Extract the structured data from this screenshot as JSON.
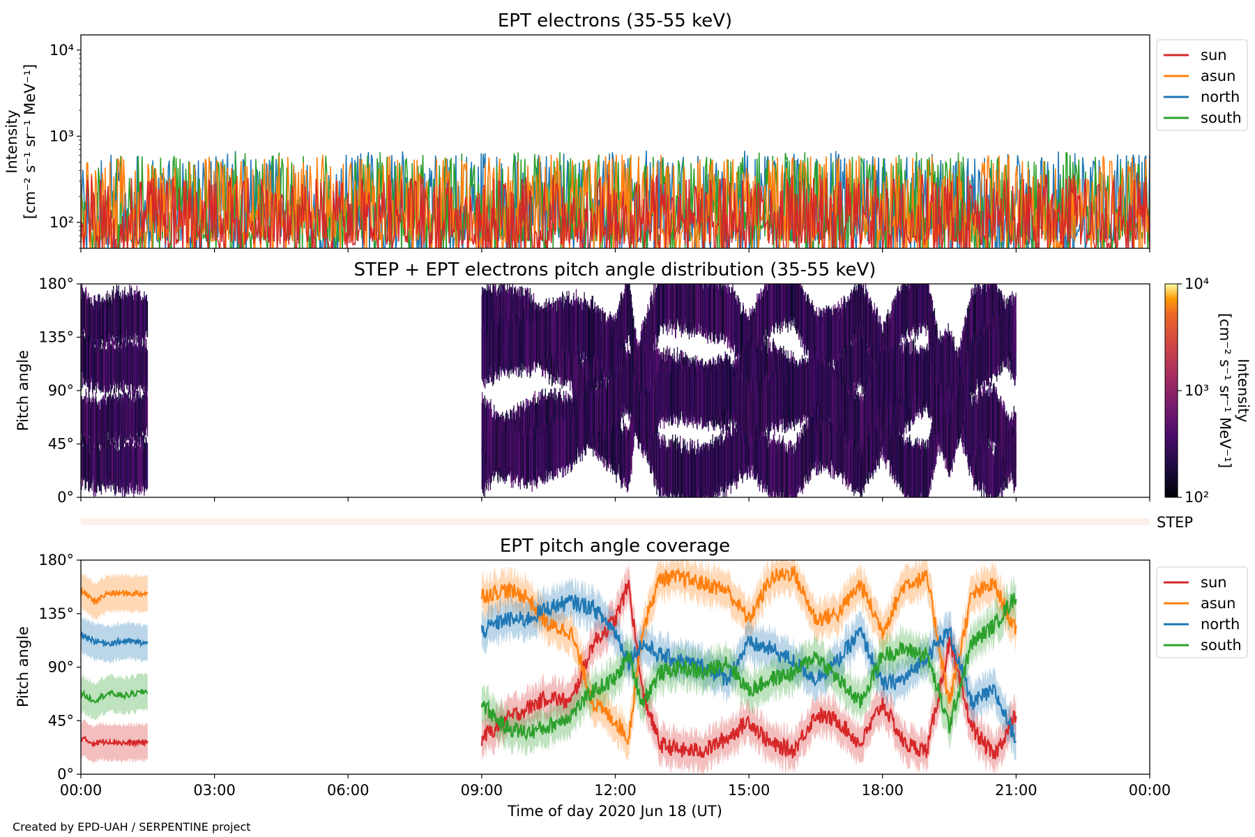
{
  "chart_data": [
    {
      "type": "line",
      "title": "EPT electrons (35-55 keV)",
      "ylabel_line1": "Intensity",
      "ylabel_line2": "[cm⁻² s⁻¹ sr⁻¹ MeV⁻¹]",
      "yscale": "log",
      "ylim": [
        50,
        15000
      ],
      "yticks": [
        {
          "value": 100,
          "label": "10²"
        },
        {
          "value": 1000,
          "label": "10³"
        },
        {
          "value": 10000,
          "label": "10⁴"
        }
      ],
      "xlim_hours": [
        0,
        24
      ],
      "x_unit": "hours since 2020-06-18 00:00 UT",
      "legend_position": "upper right outside",
      "series": [
        {
          "name": "sun",
          "color": "#d62728",
          "typical_range": [
            55,
            330
          ]
        },
        {
          "name": "asun",
          "color": "#ff7f0e",
          "typical_range": [
            60,
            560
          ]
        },
        {
          "name": "north",
          "color": "#1f77b4",
          "typical_range": [
            60,
            620
          ]
        },
        {
          "name": "south",
          "color": "#2ca02c",
          "typical_range": [
            60,
            600
          ]
        }
      ]
    },
    {
      "type": "heatmap",
      "title": "STEP + EPT electrons pitch angle distribution (35-55 keV)",
      "ylabel": "Pitch angle",
      "ylim": [
        0,
        180
      ],
      "yticks": [
        {
          "value": 0,
          "label": "0°"
        },
        {
          "value": 45,
          "label": "45°"
        },
        {
          "value": 90,
          "label": "90°"
        },
        {
          "value": 135,
          "label": "135°"
        },
        {
          "value": 180,
          "label": "180°"
        }
      ],
      "xlim_hours": [
        0,
        24
      ],
      "data_intervals_hours": [
        [
          0,
          1.5
        ],
        [
          9,
          21
        ]
      ],
      "colorbar": {
        "label": "Intensity",
        "unit": "[cm⁻² s⁻¹ sr⁻¹ MeV⁻¹]",
        "scale": "log",
        "range": [
          100,
          10000
        ],
        "ticks": [
          {
            "value": 100,
            "label": "10²"
          },
          {
            "value": 1000,
            "label": "10³"
          },
          {
            "value": 10000,
            "label": "10⁴"
          }
        ],
        "colormap": "inferno"
      }
    },
    {
      "type": "band",
      "label": "STEP",
      "color": "#fdf0ea",
      "xlim_hours": [
        0,
        24
      ]
    },
    {
      "type": "area",
      "title": "EPT pitch angle coverage",
      "ylabel": "Pitch angle",
      "ylim": [
        0,
        180
      ],
      "yticks": [
        {
          "value": 0,
          "label": "0°"
        },
        {
          "value": 45,
          "label": "45°"
        },
        {
          "value": 90,
          "label": "90°"
        },
        {
          "value": 135,
          "label": "135°"
        },
        {
          "value": 180,
          "label": "180°"
        }
      ],
      "xlabel": "Time of day 2020 Jun 18 (UT)",
      "xlim_hours": [
        0,
        24
      ],
      "xticks": [
        {
          "value": 0,
          "label": "00:00"
        },
        {
          "value": 3,
          "label": "03:00"
        },
        {
          "value": 6,
          "label": "06:00"
        },
        {
          "value": 9,
          "label": "09:00"
        },
        {
          "value": 12,
          "label": "12:00"
        },
        {
          "value": 15,
          "label": "15:00"
        },
        {
          "value": 18,
          "label": "18:00"
        },
        {
          "value": 21,
          "label": "21:00"
        },
        {
          "value": 24,
          "label": "00:00"
        }
      ],
      "legend_position": "upper right outside",
      "band_halfwidth_deg": 15,
      "series": [
        {
          "name": "sun",
          "color": "#d62728",
          "points": [
            [
              0,
              30
            ],
            [
              0.3,
              26
            ],
            [
              0.6,
              28
            ],
            [
              1.0,
              26
            ],
            [
              1.5,
              27
            ],
            [
              9.0,
              30
            ],
            [
              9.5,
              45
            ],
            [
              10.0,
              55
            ],
            [
              10.5,
              65
            ],
            [
              11.0,
              60
            ],
            [
              11.5,
              110
            ],
            [
              12.0,
              130
            ],
            [
              12.3,
              160
            ],
            [
              12.6,
              70
            ],
            [
              13.0,
              25
            ],
            [
              13.5,
              20
            ],
            [
              14.0,
              20
            ],
            [
              14.5,
              30
            ],
            [
              15.0,
              45
            ],
            [
              15.5,
              25
            ],
            [
              16.0,
              20
            ],
            [
              16.5,
              50
            ],
            [
              17.0,
              45
            ],
            [
              17.5,
              25
            ],
            [
              18.0,
              60
            ],
            [
              18.5,
              25
            ],
            [
              19.0,
              20
            ],
            [
              19.5,
              110
            ],
            [
              20.0,
              40
            ],
            [
              20.5,
              15
            ],
            [
              21.0,
              50
            ]
          ]
        },
        {
          "name": "asun",
          "color": "#ff7f0e",
          "points": [
            [
              0,
              155
            ],
            [
              0.3,
              145
            ],
            [
              0.6,
              152
            ],
            [
              1.0,
              152
            ],
            [
              1.5,
              152
            ],
            [
              9.0,
              150
            ],
            [
              9.5,
              155
            ],
            [
              10.0,
              150
            ],
            [
              10.5,
              125
            ],
            [
              11.0,
              120
            ],
            [
              11.5,
              60
            ],
            [
              12.0,
              45
            ],
            [
              12.3,
              30
            ],
            [
              12.6,
              120
            ],
            [
              13.0,
              165
            ],
            [
              13.5,
              165
            ],
            [
              14.0,
              160
            ],
            [
              14.5,
              155
            ],
            [
              15.0,
              130
            ],
            [
              15.5,
              165
            ],
            [
              16.0,
              170
            ],
            [
              16.5,
              130
            ],
            [
              17.0,
              135
            ],
            [
              17.5,
              160
            ],
            [
              18.0,
              120
            ],
            [
              18.5,
              160
            ],
            [
              19.0,
              165
            ],
            [
              19.5,
              60
            ],
            [
              20.0,
              150
            ],
            [
              20.5,
              160
            ],
            [
              21.0,
              120
            ]
          ]
        },
        {
          "name": "north",
          "color": "#1f77b4",
          "points": [
            [
              0,
              118
            ],
            [
              0.3,
              112
            ],
            [
              0.6,
              110
            ],
            [
              1.0,
              112
            ],
            [
              1.5,
              110
            ],
            [
              9.0,
              120
            ],
            [
              9.5,
              130
            ],
            [
              10.0,
              130
            ],
            [
              10.5,
              140
            ],
            [
              11.0,
              145
            ],
            [
              11.5,
              140
            ],
            [
              12.0,
              120
            ],
            [
              12.3,
              95
            ],
            [
              12.6,
              110
            ],
            [
              13.0,
              100
            ],
            [
              13.5,
              95
            ],
            [
              14.0,
              90
            ],
            [
              14.5,
              80
            ],
            [
              15.0,
              110
            ],
            [
              15.5,
              105
            ],
            [
              16.0,
              95
            ],
            [
              16.5,
              80
            ],
            [
              17.0,
              95
            ],
            [
              17.5,
              120
            ],
            [
              18.0,
              75
            ],
            [
              18.5,
              80
            ],
            [
              19.0,
              100
            ],
            [
              19.5,
              120
            ],
            [
              20.0,
              60
            ],
            [
              20.5,
              70
            ],
            [
              21.0,
              30
            ]
          ]
        },
        {
          "name": "south",
          "color": "#2ca02c",
          "points": [
            [
              0,
              68
            ],
            [
              0.3,
              62
            ],
            [
              0.6,
              68
            ],
            [
              1.0,
              66
            ],
            [
              1.5,
              70
            ],
            [
              9.0,
              60
            ],
            [
              9.5,
              40
            ],
            [
              10.0,
              35
            ],
            [
              10.5,
              40
            ],
            [
              11.0,
              50
            ],
            [
              11.5,
              70
            ],
            [
              12.0,
              80
            ],
            [
              12.3,
              100
            ],
            [
              12.6,
              60
            ],
            [
              13.0,
              85
            ],
            [
              13.5,
              90
            ],
            [
              14.0,
              85
            ],
            [
              14.5,
              95
            ],
            [
              15.0,
              70
            ],
            [
              15.5,
              80
            ],
            [
              16.0,
              85
            ],
            [
              16.5,
              100
            ],
            [
              17.0,
              80
            ],
            [
              17.5,
              60
            ],
            [
              18.0,
              100
            ],
            [
              18.5,
              105
            ],
            [
              19.0,
              100
            ],
            [
              19.5,
              40
            ],
            [
              20.0,
              110
            ],
            [
              20.5,
              125
            ],
            [
              21.0,
              150
            ]
          ]
        }
      ]
    }
  ],
  "footer": {
    "text": "Created by EPD-UAH / SERPENTINE project"
  }
}
